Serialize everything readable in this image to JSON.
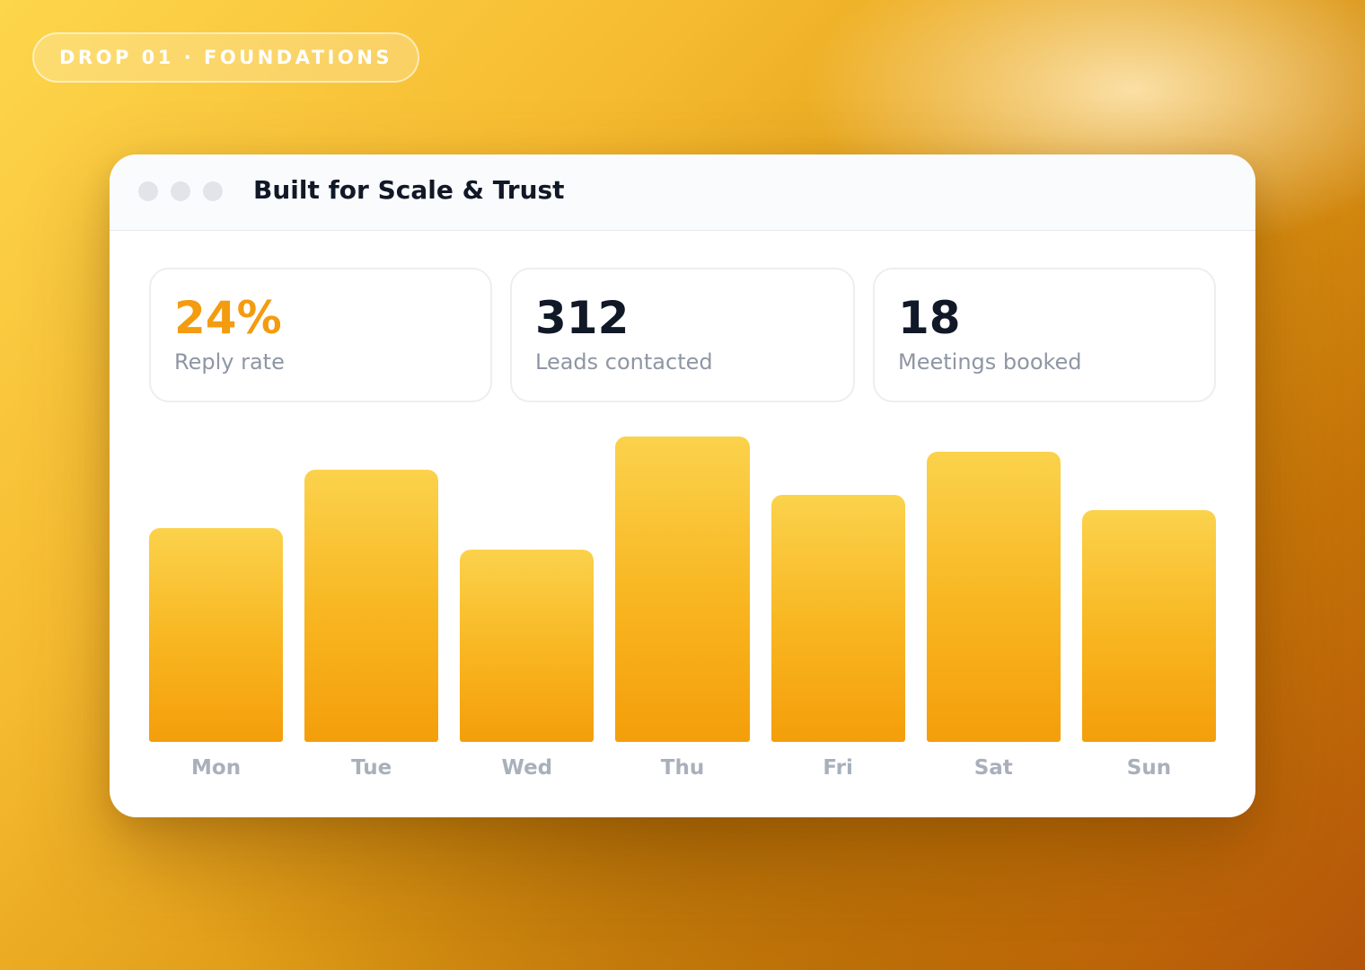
{
  "badge": {
    "text": "DROP 01 · FOUNDATIONS"
  },
  "window": {
    "title": "Built for Scale & Trust"
  },
  "stats": [
    {
      "value": "24%",
      "label": "Reply rate"
    },
    {
      "value": "312",
      "label": "Leads contacted"
    },
    {
      "value": "18",
      "label": "Meetings booked"
    }
  ],
  "colors": {
    "accent": "#f39c0f",
    "bar_top": "#fbd24c",
    "bar_bottom": "#f49e0b",
    "text_dark": "#111827",
    "text_muted": "#8e96a4"
  },
  "chart_data": {
    "type": "bar",
    "categories": [
      "Mon",
      "Tue",
      "Wed",
      "Thu",
      "Fri",
      "Sat",
      "Sun"
    ],
    "values": [
      70,
      89,
      63,
      100,
      81,
      95,
      76
    ],
    "ylim": [
      0,
      100
    ],
    "grid": false,
    "legend": "none"
  }
}
